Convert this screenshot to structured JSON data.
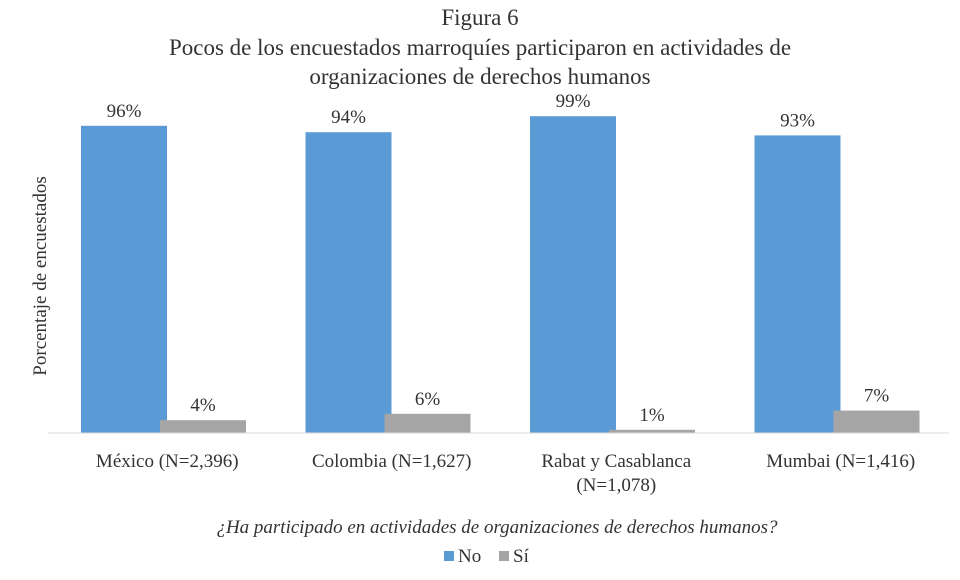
{
  "chart_data": {
    "type": "bar",
    "figure_label": "Figura 6",
    "title_lines": [
      "Pocos de los encuestados marroquíes participaron en actividades de",
      "organizaciones de derechos humanos"
    ],
    "ylabel": "Porcentaje de encuestados",
    "xlabel": "¿Ha participado en actividades de organizaciones de derechos humanos?",
    "ylim": [
      0,
      100
    ],
    "grid": false,
    "legend_position": "bottom-center",
    "categories": [
      [
        "México (N=2,396)"
      ],
      [
        "Colombia (N=1,627)"
      ],
      [
        "Rabat y Casablanca",
        "(N=1,078)"
      ],
      [
        "Mumbai (N=1,416)"
      ]
    ],
    "series": [
      {
        "name": "No",
        "color": "#5b9bd5",
        "values": [
          96,
          94,
          99,
          93
        ],
        "labels": [
          "96%",
          "94%",
          "99%",
          "93%"
        ]
      },
      {
        "name": "Sí",
        "color": "#a5a5a5",
        "values": [
          4,
          6,
          1,
          7
        ],
        "labels": [
          "4%",
          "6%",
          "1%",
          "7%"
        ]
      }
    ]
  }
}
